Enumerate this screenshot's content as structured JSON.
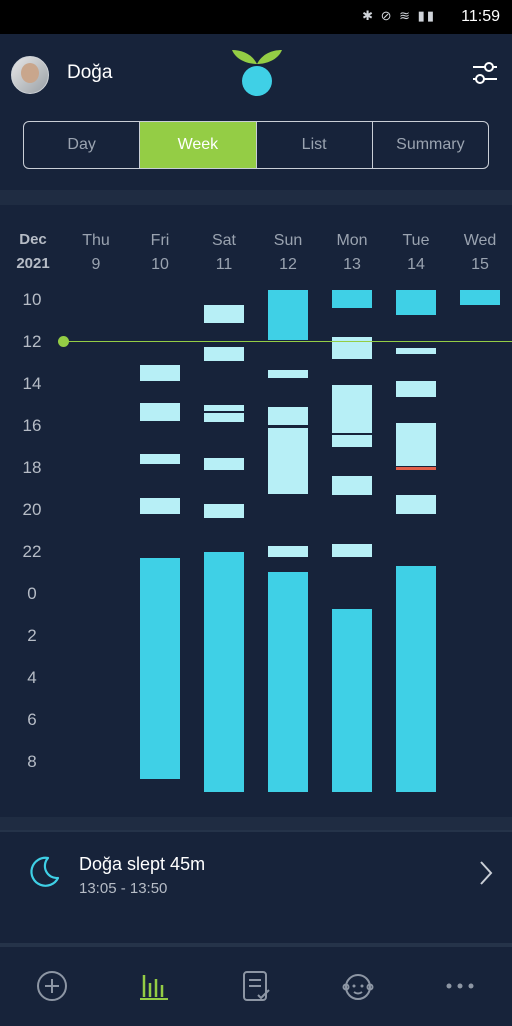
{
  "status_bar": {
    "time": "11:59",
    "battery": "54"
  },
  "header": {
    "username": "Doğa"
  },
  "tabs": [
    {
      "label": "Day",
      "active": false
    },
    {
      "label": "Week",
      "active": true
    },
    {
      "label": "List",
      "active": false
    },
    {
      "label": "Summary",
      "active": false
    }
  ],
  "chart": {
    "month": "Dec",
    "year": "2021",
    "days": [
      {
        "name": "Thu",
        "num": "9"
      },
      {
        "name": "Fri",
        "num": "10"
      },
      {
        "name": "Sat",
        "num": "11"
      },
      {
        "name": "Sun",
        "num": "12"
      },
      {
        "name": "Mon",
        "num": "13"
      },
      {
        "name": "Tue",
        "num": "14"
      },
      {
        "name": "Wed",
        "num": "15"
      }
    ],
    "hours": [
      "10",
      "12",
      "14",
      "16",
      "18",
      "20",
      "22",
      "0",
      "2",
      "4",
      "6",
      "8"
    ]
  },
  "info": {
    "title": "Doğa slept 45m",
    "time_range": "13:05 - 13:50"
  },
  "colors": {
    "accent": "#94cd45",
    "sleep": "#3fd0e6",
    "nap": "#b7eff6",
    "background": "#17233a"
  }
}
